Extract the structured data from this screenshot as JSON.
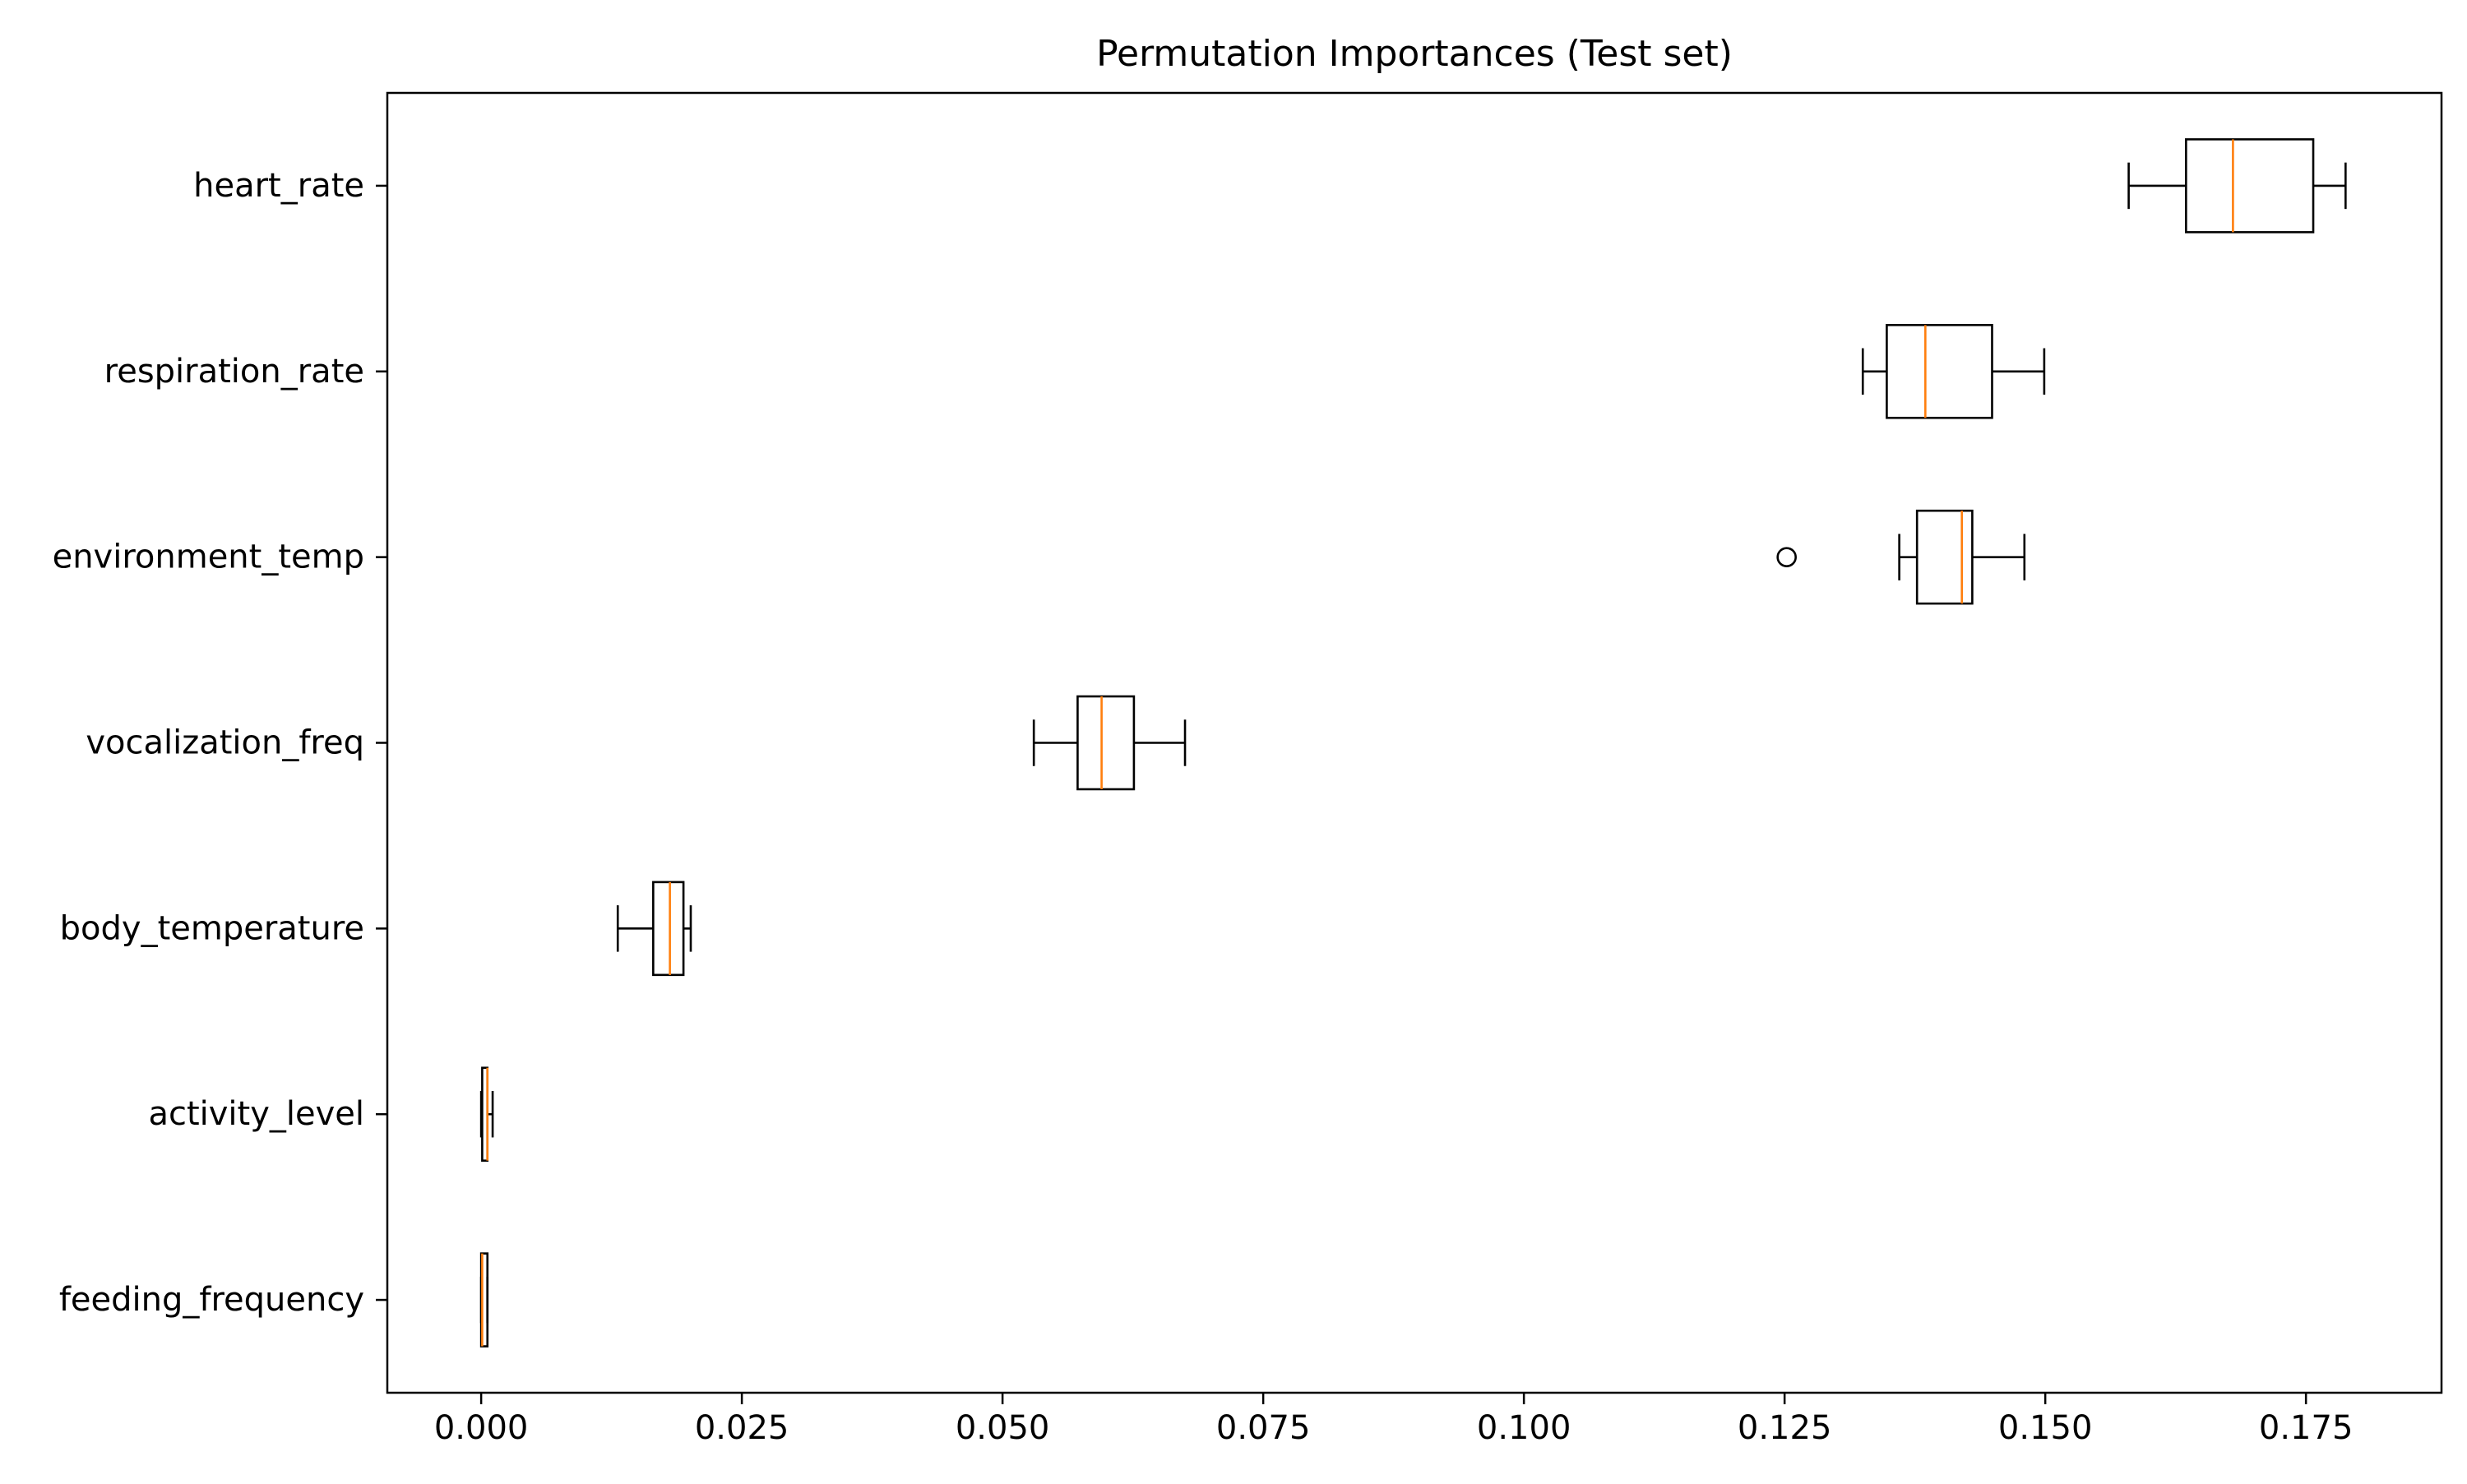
{
  "chart_data": {
    "type": "boxplot",
    "orientation": "horizontal",
    "title": "Permutation Importances (Test set)",
    "xlabel": "",
    "ylabel": "",
    "xlim": [
      -0.009,
      0.188
    ],
    "xticks": [
      0.0,
      0.025,
      0.05,
      0.075,
      0.1,
      0.125,
      0.15,
      0.175
    ],
    "xtick_labels": [
      "0.000",
      "0.025",
      "0.050",
      "0.075",
      "0.100",
      "0.125",
      "0.150",
      "0.175"
    ],
    "grid": false,
    "colors": {
      "box": "#000000",
      "median": "#ff7f0e",
      "flier": "#000000"
    },
    "categories": [
      "heart_rate",
      "respiration_rate",
      "environment_temp",
      "vocalization_freq",
      "body_temperature",
      "activity_level",
      "feeding_frequency"
    ],
    "boxes": [
      {
        "label": "heart_rate",
        "whisker_low": 0.158,
        "q1": 0.1635,
        "median": 0.168,
        "q3": 0.1757,
        "whisker_high": 0.1788,
        "fliers": []
      },
      {
        "label": "respiration_rate",
        "whisker_low": 0.1325,
        "q1": 0.1348,
        "median": 0.1385,
        "q3": 0.1449,
        "whisker_high": 0.1499,
        "fliers": []
      },
      {
        "label": "environment_temp",
        "whisker_low": 0.136,
        "q1": 0.1377,
        "median": 0.142,
        "q3": 0.143,
        "whisker_high": 0.148,
        "fliers": [
          0.1252
        ]
      },
      {
        "label": "vocalization_freq",
        "whisker_low": 0.053,
        "q1": 0.0572,
        "median": 0.0595,
        "q3": 0.0626,
        "whisker_high": 0.0675,
        "fliers": []
      },
      {
        "label": "body_temperature",
        "whisker_low": 0.0131,
        "q1": 0.0165,
        "median": 0.0181,
        "q3": 0.0194,
        "whisker_high": 0.0201,
        "fliers": []
      },
      {
        "label": "activity_level",
        "whisker_low": 0.0,
        "q1": 0.0001,
        "median": 0.0006,
        "q3": 0.0006,
        "whisker_high": 0.0011,
        "fliers": []
      },
      {
        "label": "feeding_frequency",
        "whisker_low": 0.0,
        "q1": 0.0,
        "median": 0.0001,
        "q3": 0.0006,
        "whisker_high": 0.0006,
        "fliers": []
      }
    ]
  }
}
